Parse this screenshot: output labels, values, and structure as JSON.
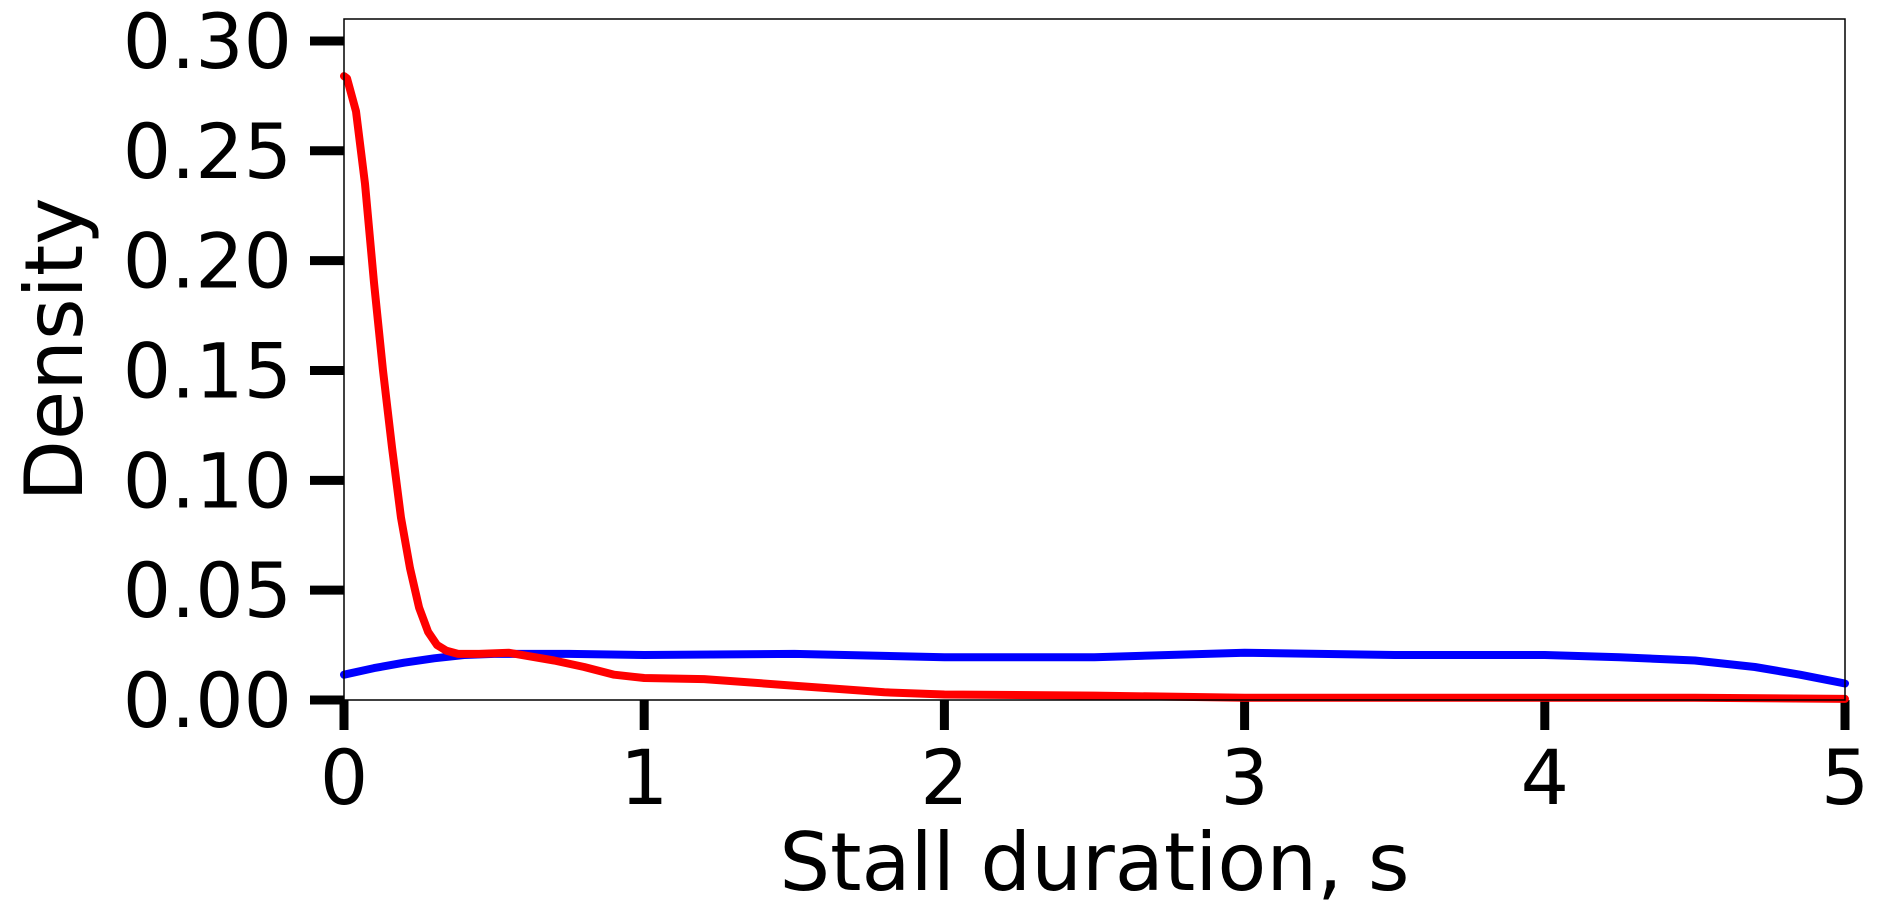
{
  "chart_data": {
    "type": "line",
    "title": "",
    "xlabel": "Stall duration, s",
    "ylabel": "Density",
    "xlim": [
      0,
      5
    ],
    "ylim": [
      0,
      0.31
    ],
    "grid": false,
    "legend": "none",
    "x_ticks": [
      0,
      1,
      2,
      3,
      4,
      5
    ],
    "x_tick_labels": [
      "0",
      "1",
      "2",
      "3",
      "4",
      "5"
    ],
    "y_ticks": [
      0,
      0.05,
      0.1,
      0.15,
      0.2,
      0.25,
      0.3
    ],
    "y_tick_labels": [
      "0.00",
      "0.05",
      "0.10",
      "0.15",
      "0.20",
      "0.25",
      "0.30"
    ],
    "series": [
      {
        "color": "#0000ff",
        "x": [
          0,
          0.1,
          0.2,
          0.3,
          0.4,
          0.5,
          0.75,
          1.0,
          1.5,
          2.0,
          2.5,
          3.0,
          3.5,
          4.0,
          4.25,
          4.5,
          4.7,
          4.85,
          5.0
        ],
        "y": [
          0.0115,
          0.0145,
          0.017,
          0.019,
          0.0205,
          0.021,
          0.021,
          0.0205,
          0.021,
          0.0195,
          0.0195,
          0.0215,
          0.0205,
          0.0205,
          0.0195,
          0.018,
          0.015,
          0.0115,
          0.0075
        ]
      },
      {
        "color": "#ff0000",
        "x": [
          0.0,
          0.01,
          0.04,
          0.07,
          0.1,
          0.13,
          0.16,
          0.19,
          0.22,
          0.25,
          0.28,
          0.31,
          0.34,
          0.38,
          0.45,
          0.55,
          0.7,
          0.8,
          0.9,
          1.0,
          1.2,
          1.5,
          1.8,
          2.0,
          2.5,
          3.0,
          3.5,
          4.0,
          4.5,
          5.0
        ],
        "y": [
          0.284,
          0.283,
          0.268,
          0.235,
          0.19,
          0.15,
          0.115,
          0.083,
          0.06,
          0.042,
          0.031,
          0.025,
          0.0225,
          0.021,
          0.021,
          0.0215,
          0.018,
          0.015,
          0.0115,
          0.01,
          0.0095,
          0.0065,
          0.0035,
          0.0025,
          0.002,
          0.001,
          0.001,
          0.001,
          0.001,
          0.0005
        ]
      }
    ]
  }
}
